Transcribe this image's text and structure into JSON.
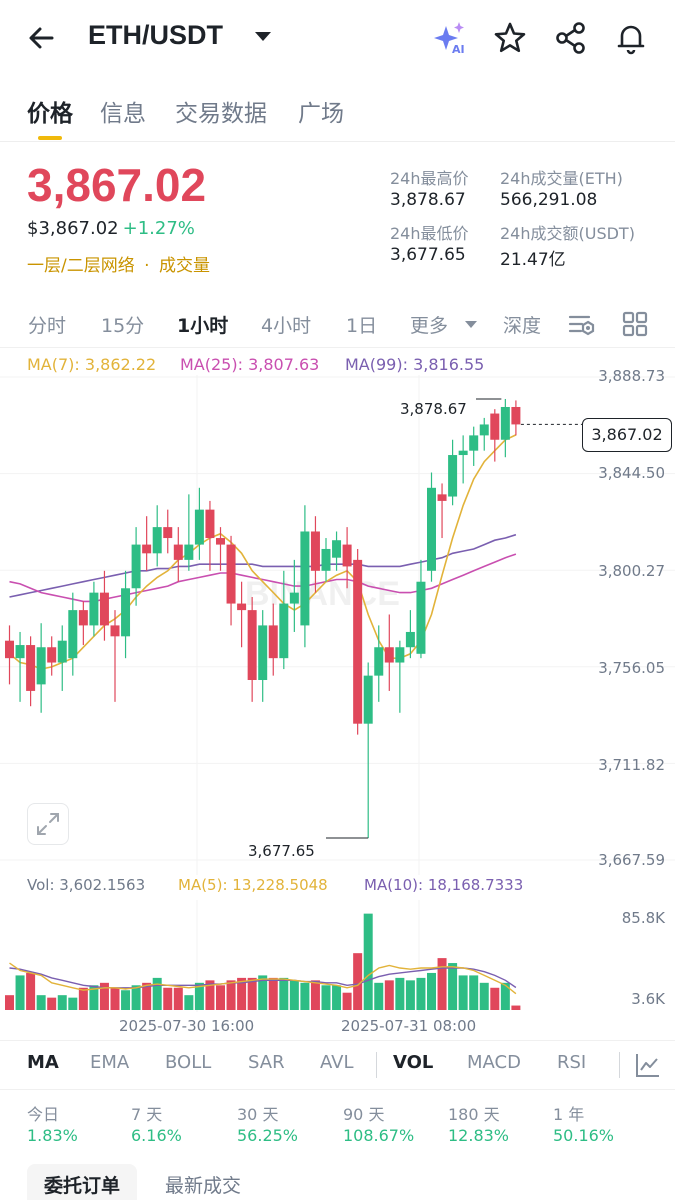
{
  "header": {
    "pair": "ETH/USDT",
    "icons": [
      "back-arrow-icon",
      "ai-sparkle-icon",
      "star-icon",
      "share-icon",
      "bell-icon"
    ],
    "ai_label": "AI"
  },
  "tabs": [
    {
      "label": "价格",
      "active": true
    },
    {
      "label": "信息",
      "active": false
    },
    {
      "label": "交易数据",
      "active": false
    },
    {
      "label": "广场",
      "active": false
    }
  ],
  "price": {
    "last": "3,867.02",
    "usd": "$3,867.02",
    "change": "+1.27%",
    "layer_link": "一层/二层网络",
    "separator": "·",
    "volume_link": "成交量",
    "price_color": "#e0475b",
    "up_color": "#2ebd85",
    "link_color": "#c99400"
  },
  "stats": {
    "high_label": "24h最高价",
    "high_value": "3,878.67",
    "vol_eth_label": "24h成交量(ETH)",
    "vol_eth_value": "566,291.08",
    "low_label": "24h最低价",
    "low_value": "3,677.65",
    "vol_usdt_label": "24h成交额(USDT)",
    "vol_usdt_value": "21.47亿"
  },
  "intervals": [
    {
      "label": "分时",
      "active": false
    },
    {
      "label": "15分",
      "active": false
    },
    {
      "label": "1小时",
      "active": true
    },
    {
      "label": "4小时",
      "active": false
    },
    {
      "label": "1日",
      "active": false
    },
    {
      "label": "更多",
      "active": false
    },
    {
      "label": "深度",
      "active": false
    }
  ],
  "ma_legend": {
    "ma7": "MA(7): 3,862.22",
    "ma25": "MA(25): 3,807.63",
    "ma99": "MA(99): 3,816.55",
    "ma7_color": "#e2b33a",
    "ma25_color": "#c94fb0",
    "ma99_color": "#7a5fb0"
  },
  "price_axis": [
    "3,888.73",
    "3,844.50",
    "3,800.27",
    "3,756.05",
    "3,711.82",
    "3,667.59"
  ],
  "annotations": {
    "high": "3,878.67",
    "low": "3,677.65",
    "current": "3,867.02"
  },
  "watermark": "BINANCE",
  "volume": {
    "vol_label": "Vol: 3,602.1563",
    "ma5": "MA(5): 13,228.5048",
    "ma10": "MA(10): 18,168.7333",
    "axis_top": "85.8K",
    "axis_bottom": "3.6K"
  },
  "dates": [
    "2025-07-30 16:00",
    "2025-07-31 08:00"
  ],
  "indicators": [
    {
      "label": "MA",
      "active": true
    },
    {
      "label": "EMA",
      "active": false
    },
    {
      "label": "BOLL",
      "active": false
    },
    {
      "label": "SAR",
      "active": false
    },
    {
      "label": "AVL",
      "active": false
    },
    {
      "label": "VOL",
      "active": true
    },
    {
      "label": "MACD",
      "active": false
    },
    {
      "label": "RSI",
      "active": false
    }
  ],
  "performance": [
    {
      "label": "今日",
      "value": "1.83%"
    },
    {
      "label": "7 天",
      "value": "6.16%"
    },
    {
      "label": "30 天",
      "value": "56.25%"
    },
    {
      "label": "90 天",
      "value": "108.67%"
    },
    {
      "label": "180 天",
      "value": "12.83%"
    },
    {
      "label": "1 年",
      "value": "50.16%"
    }
  ],
  "order_tabs": [
    {
      "label": "委托订单",
      "active": true
    },
    {
      "label": "最新成交",
      "active": false
    }
  ],
  "chart_data": {
    "type": "candlestick",
    "ylim": [
      3667.59,
      3888.73
    ],
    "y_ticks": [
      3888.73,
      3844.5,
      3800.27,
      3756.05,
      3711.82,
      3667.59
    ],
    "x_ticks": [
      "2025-07-30 16:00",
      "2025-07-31 08:00"
    ],
    "up_color": "#2ebd85",
    "down_color": "#e0475b",
    "candles": [
      [
        3768,
        3760,
        3775,
        3748
      ],
      [
        3760,
        3766,
        3772,
        3740
      ],
      [
        3766,
        3745,
        3770,
        3738
      ],
      [
        3748,
        3765,
        3776,
        3735
      ],
      [
        3765,
        3758,
        3770,
        3752
      ],
      [
        3758,
        3768,
        3775,
        3745
      ],
      [
        3760,
        3782,
        3790,
        3752
      ],
      [
        3782,
        3775,
        3786,
        3766
      ],
      [
        3775,
        3790,
        3795,
        3770
      ],
      [
        3790,
        3775,
        3800,
        3768
      ],
      [
        3775,
        3770,
        3782,
        3740
      ],
      [
        3770,
        3792,
        3800,
        3760
      ],
      [
        3792,
        3812,
        3820,
        3784
      ],
      [
        3812,
        3808,
        3825,
        3800
      ],
      [
        3808,
        3820,
        3830,
        3802
      ],
      [
        3820,
        3815,
        3828,
        3808
      ],
      [
        3812,
        3805,
        3820,
        3795
      ],
      [
        3805,
        3812,
        3835,
        3800
      ],
      [
        3812,
        3828,
        3838,
        3805
      ],
      [
        3828,
        3815,
        3832,
        3800
      ],
      [
        3815,
        3812,
        3820,
        3800
      ],
      [
        3812,
        3785,
        3816,
        3775
      ],
      [
        3785,
        3782,
        3795,
        3765
      ],
      [
        3782,
        3750,
        3788,
        3740
      ],
      [
        3750,
        3775,
        3782,
        3740
      ],
      [
        3775,
        3760,
        3785,
        3752
      ],
      [
        3760,
        3785,
        3800,
        3755
      ],
      [
        3785,
        3790,
        3805,
        3772
      ],
      [
        3775,
        3818,
        3830,
        3765
      ],
      [
        3818,
        3800,
        3825,
        3790
      ],
      [
        3800,
        3810,
        3815,
        3795
      ],
      [
        3806,
        3814,
        3818,
        3800
      ],
      [
        3812,
        3802,
        3820,
        3792
      ],
      [
        3805,
        3730,
        3810,
        3725
      ],
      [
        3730,
        3752,
        3758,
        3677.65
      ],
      [
        3752,
        3765,
        3775,
        3740
      ],
      [
        3765,
        3758,
        3780,
        3745
      ],
      [
        3758,
        3765,
        3768,
        3735
      ],
      [
        3765,
        3772,
        3782,
        3760
      ],
      [
        3762,
        3795,
        3805,
        3760
      ],
      [
        3800,
        3838,
        3845,
        3795
      ],
      [
        3835,
        3832,
        3840,
        3815
      ],
      [
        3834,
        3853,
        3860,
        3830
      ],
      [
        3853,
        3855,
        3862,
        3840
      ],
      [
        3855,
        3862,
        3866,
        3848
      ],
      [
        3862,
        3867,
        3870,
        3855
      ],
      [
        3872,
        3860,
        3874,
        3850
      ],
      [
        3860,
        3875,
        3878.67,
        3852
      ],
      [
        3875,
        3867.02,
        3878,
        3862
      ]
    ],
    "ma7": [
      3762,
      3758,
      3757,
      3755,
      3756,
      3758,
      3760,
      3765,
      3770,
      3775,
      3778,
      3782,
      3788,
      3793,
      3797,
      3800,
      3805,
      3808,
      3812,
      3815,
      3817,
      3813,
      3808,
      3800,
      3795,
      3790,
      3785,
      3782,
      3785,
      3790,
      3795,
      3798,
      3800,
      3795,
      3780,
      3768,
      3760,
      3760,
      3762,
      3768,
      3780,
      3798,
      3815,
      3830,
      3842,
      3850,
      3855,
      3860,
      3862.22
    ],
    "ma25": [
      3795,
      3794,
      3792,
      3790,
      3789,
      3788,
      3787,
      3786,
      3786,
      3787,
      3788,
      3789,
      3790,
      3791,
      3792,
      3793,
      3795,
      3796,
      3797,
      3798,
      3799,
      3799,
      3798,
      3797,
      3796,
      3795,
      3794,
      3793,
      3793,
      3794,
      3795,
      3796,
      3796,
      3795,
      3793,
      3792,
      3791,
      3790,
      3790,
      3791,
      3792,
      3794,
      3796,
      3798,
      3800,
      3802,
      3804,
      3806,
      3807.63
    ],
    "ma99": [
      3788,
      3789,
      3790,
      3791,
      3792,
      3793,
      3794,
      3795,
      3796,
      3797,
      3798,
      3799,
      3800,
      3800,
      3801,
      3801,
      3802,
      3802,
      3803,
      3803,
      3803,
      3803,
      3803,
      3803,
      3802,
      3802,
      3802,
      3802,
      3802,
      3802,
      3803,
      3803,
      3803,
      3803,
      3802,
      3802,
      3802,
      3802,
      3803,
      3804,
      3805,
      3806,
      3808,
      3809,
      3810,
      3812,
      3814,
      3815,
      3816.55
    ]
  },
  "volume_data": {
    "ylim": [
      0,
      85800
    ],
    "values": [
      12,
      28,
      30,
      12,
      10,
      12,
      10,
      18,
      20,
      22,
      18,
      16,
      20,
      22,
      26,
      18,
      18,
      12,
      22,
      24,
      20,
      24,
      26,
      26,
      28,
      26,
      26,
      24,
      22,
      24,
      20,
      20,
      14,
      46,
      78,
      22,
      24,
      26,
      24,
      26,
      30,
      42,
      38,
      28,
      28,
      22,
      18,
      22,
      3.6
    ],
    "ma5": [
      38,
      32,
      30,
      28,
      22,
      20,
      18,
      16,
      17,
      18,
      18,
      17,
      18,
      20,
      21,
      20,
      19,
      18,
      19,
      20,
      21,
      22,
      23,
      24,
      25,
      25,
      25,
      24,
      23,
      22,
      21,
      20,
      18,
      20,
      28,
      34,
      36,
      34,
      33,
      34,
      34,
      35,
      35,
      34,
      32,
      28,
      24,
      20,
      13.2
    ],
    "ma10": [
      34,
      33,
      31,
      29,
      26,
      24,
      22,
      20,
      19,
      18,
      18,
      18,
      18,
      19,
      20,
      20,
      20,
      20,
      20,
      21,
      21,
      22,
      22,
      23,
      24,
      24,
      24,
      24,
      23,
      23,
      22,
      22,
      20,
      21,
      24,
      27,
      29,
      30,
      31,
      32,
      33,
      34,
      34,
      34,
      33,
      31,
      28,
      24,
      18.2
    ]
  }
}
